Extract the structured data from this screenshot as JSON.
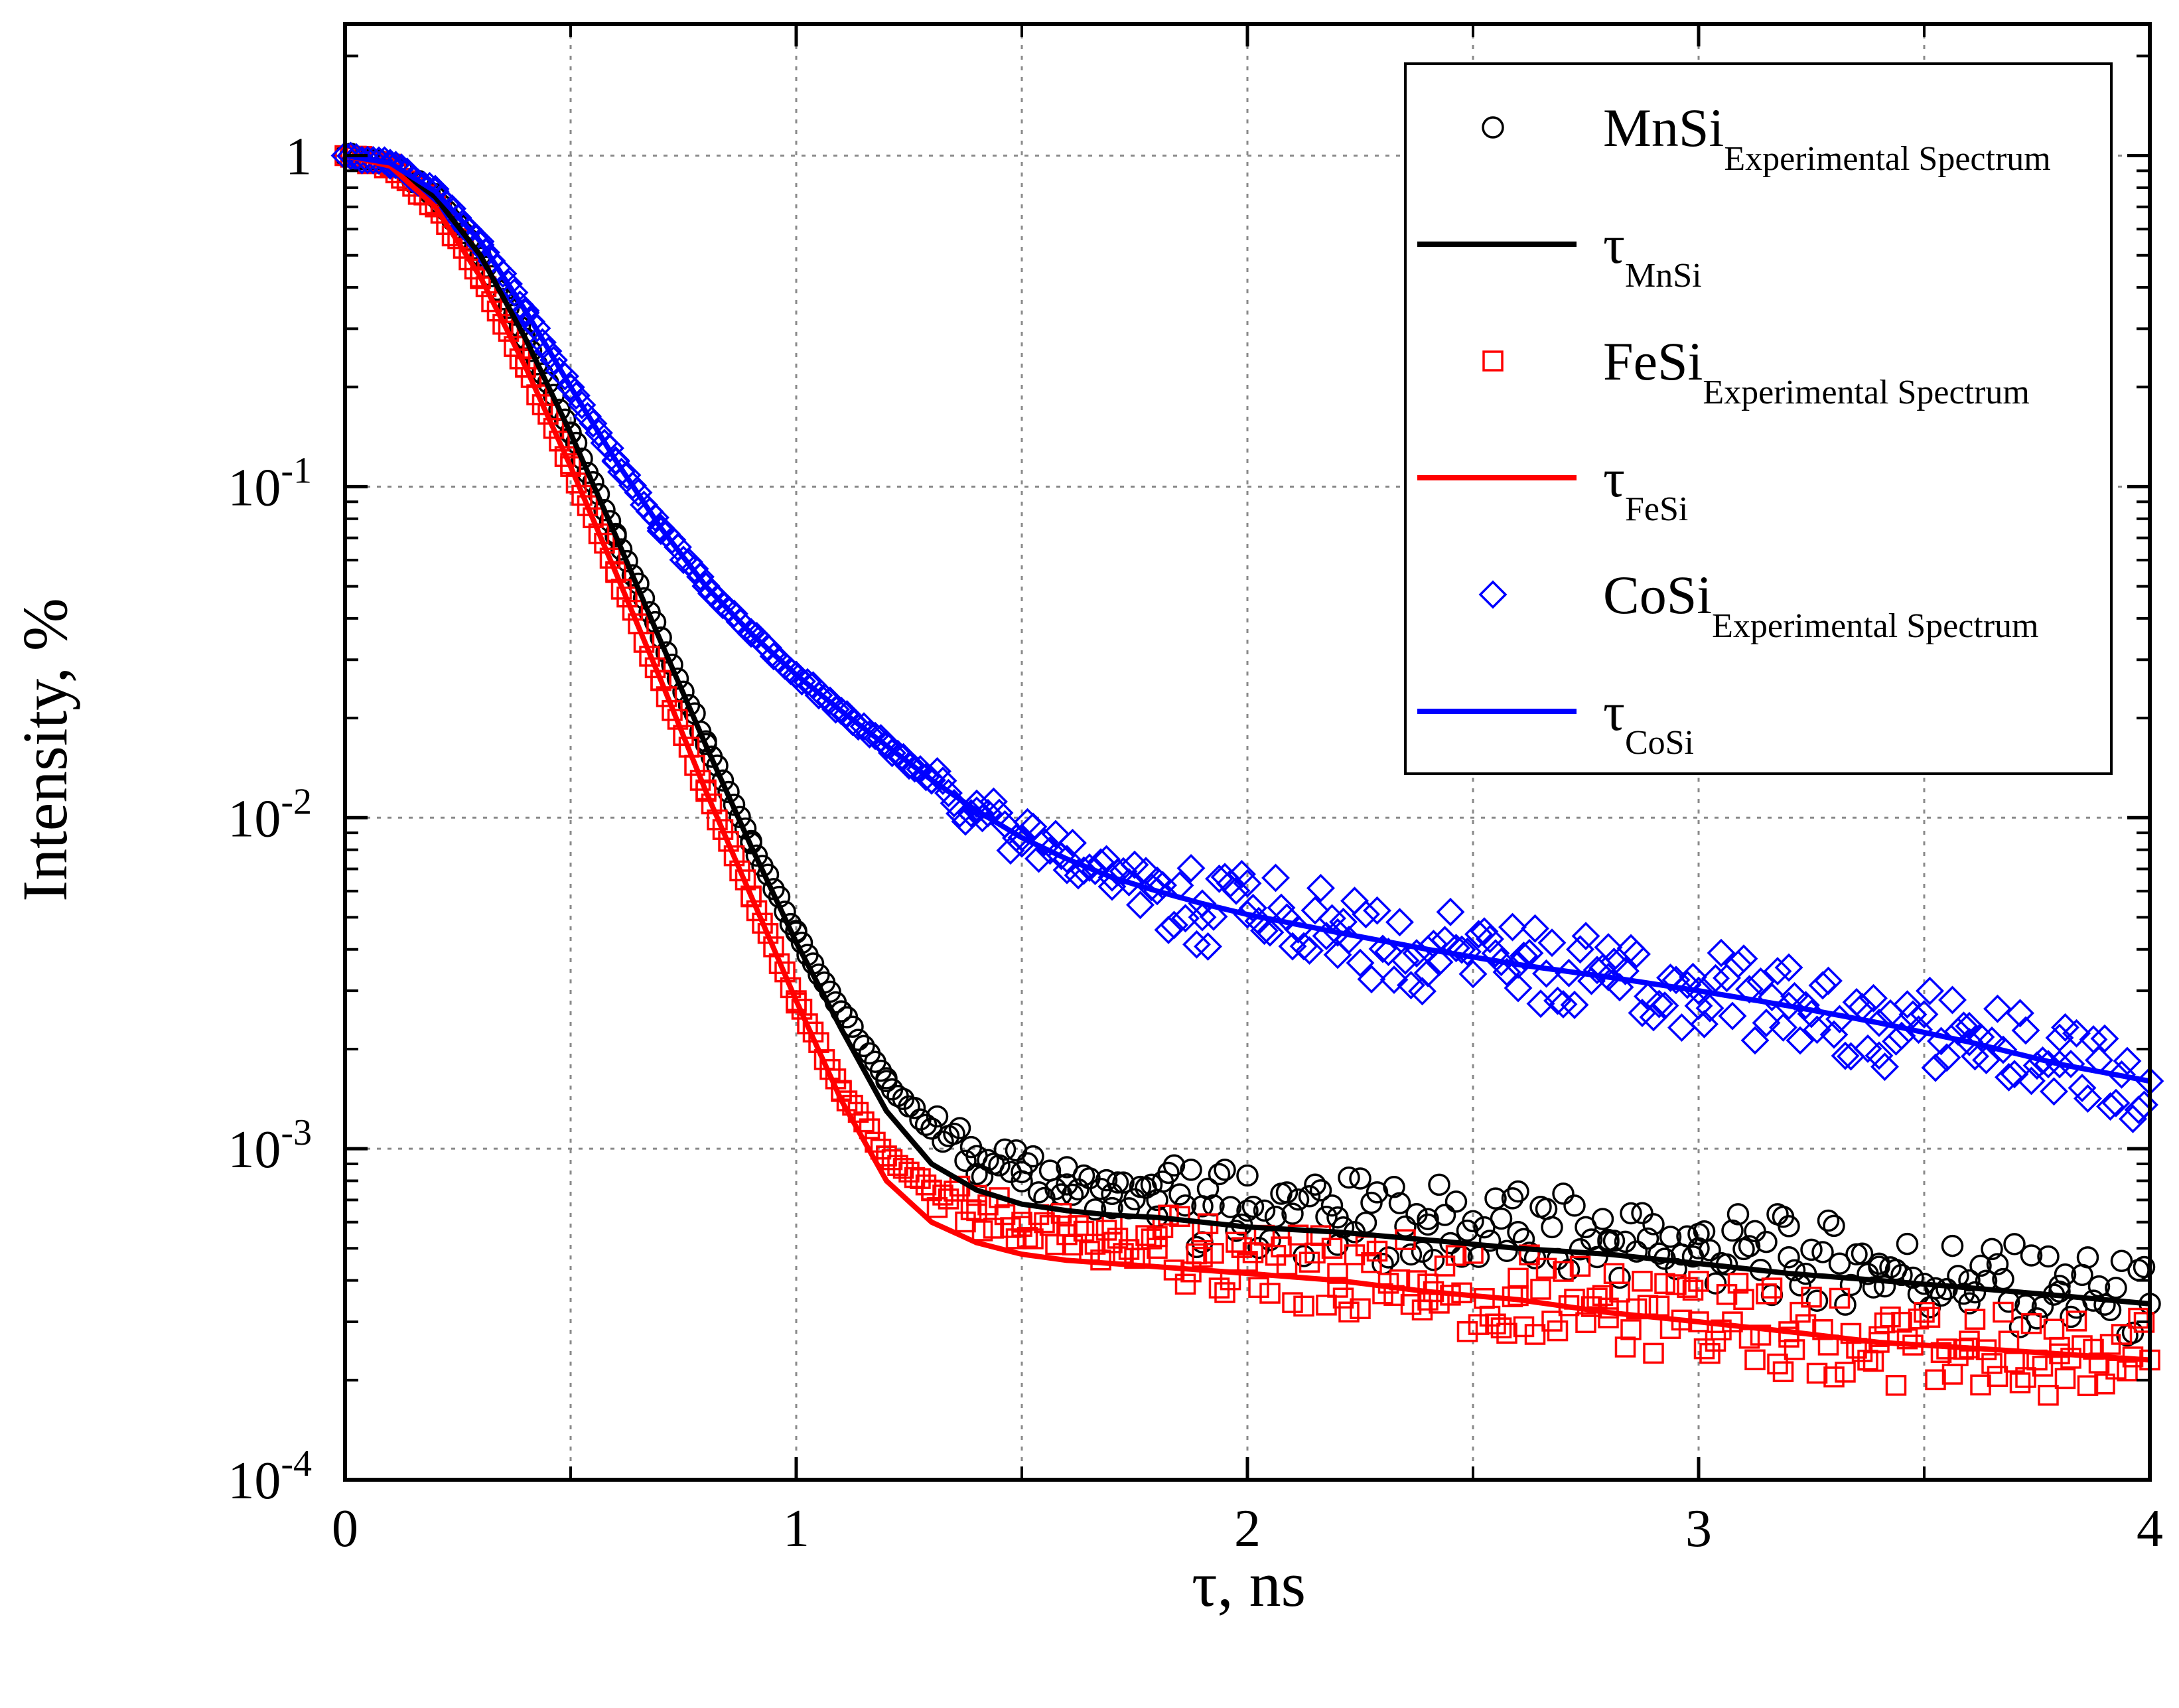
{
  "chart_data": {
    "type": "scatter",
    "title": "",
    "xlabel": "τ, ns",
    "ylabel": "Intensity, %",
    "xscale": "linear",
    "yscale": "log",
    "xlim": [
      0,
      4
    ],
    "ylim": [
      0.0001,
      2.5
    ],
    "grid": true,
    "legend_position": "top-right",
    "x_ticks": [
      {
        "value": 0,
        "label": "0"
      },
      {
        "value": 1,
        "label": "1"
      },
      {
        "value": 2,
        "label": "2"
      },
      {
        "value": 3,
        "label": "3"
      },
      {
        "value": 4,
        "label": "4"
      }
    ],
    "y_ticks": [
      {
        "value": 1,
        "base": "1",
        "exp": ""
      },
      {
        "value": 0.1,
        "base": "10",
        "exp": "-1"
      },
      {
        "value": 0.01,
        "base": "10",
        "exp": "-2"
      },
      {
        "value": 0.001,
        "base": "10",
        "exp": "-3"
      },
      {
        "value": 0.0001,
        "base": "10",
        "exp": "-4"
      }
    ],
    "series": [
      {
        "name": "MnSi",
        "subscript": "Experimental Spectrum",
        "kind": "markers",
        "marker": "circle",
        "color": "#000000",
        "x": [
          0.0,
          0.1,
          0.2,
          0.3,
          0.4,
          0.5,
          0.6,
          0.7,
          0.8,
          0.9,
          1.0,
          1.1,
          1.2,
          1.3,
          1.4,
          1.5,
          1.6,
          1.7,
          1.8,
          1.9,
          2.0,
          2.2,
          2.4,
          2.6,
          2.8,
          3.0,
          3.2,
          3.4,
          3.6,
          3.8,
          4.0
        ],
        "y": [
          1.0,
          0.95,
          0.75,
          0.5,
          0.28,
          0.145,
          0.072,
          0.035,
          0.017,
          0.0085,
          0.0045,
          0.0026,
          0.0016,
          0.00115,
          0.00095,
          0.00085,
          0.00078,
          0.00073,
          0.0007,
          0.00067,
          0.00065,
          0.00062,
          0.00059,
          0.00056,
          0.00053,
          0.0005,
          0.00047,
          0.00044,
          0.0004,
          0.00037,
          0.00034
        ]
      },
      {
        "name": "τ",
        "subscript": "MnSi",
        "kind": "line",
        "color": "#000000",
        "x": [
          0.0,
          0.1,
          0.2,
          0.3,
          0.4,
          0.5,
          0.6,
          0.7,
          0.8,
          0.9,
          1.0,
          1.1,
          1.2,
          1.3,
          1.4,
          1.5,
          1.6,
          1.7,
          1.8,
          1.9,
          2.0,
          2.2,
          2.4,
          2.6,
          2.8,
          3.0,
          3.2,
          3.4,
          3.6,
          3.8,
          4.0
        ],
        "y": [
          1.0,
          0.95,
          0.75,
          0.5,
          0.28,
          0.145,
          0.071,
          0.034,
          0.0165,
          0.0082,
          0.0042,
          0.0023,
          0.0013,
          0.0009,
          0.00075,
          0.00068,
          0.00065,
          0.00063,
          0.00062,
          0.0006,
          0.00058,
          0.00056,
          0.00053,
          0.0005,
          0.00048,
          0.00045,
          0.00042,
          0.0004,
          0.00038,
          0.00036,
          0.00034
        ]
      },
      {
        "name": "FeSi",
        "subscript": "Experimental Spectrum",
        "kind": "markers",
        "marker": "square",
        "color": "#ff0000",
        "x": [
          0.0,
          0.1,
          0.2,
          0.3,
          0.4,
          0.5,
          0.6,
          0.7,
          0.8,
          0.9,
          1.0,
          1.1,
          1.2,
          1.3,
          1.4,
          1.5,
          1.6,
          1.7,
          1.8,
          1.9,
          2.0,
          2.2,
          2.4,
          2.6,
          2.8,
          3.0,
          3.2,
          3.4,
          3.6,
          3.8,
          4.0
        ],
        "y": [
          1.0,
          0.93,
          0.7,
          0.43,
          0.23,
          0.115,
          0.055,
          0.026,
          0.012,
          0.0058,
          0.0028,
          0.0015,
          0.00095,
          0.00075,
          0.00065,
          0.0006,
          0.00055,
          0.00052,
          0.0005,
          0.00047,
          0.00045,
          0.00042,
          0.00039,
          0.00036,
          0.00033,
          0.0003,
          0.00028,
          0.00026,
          0.00025,
          0.00024,
          0.00023
        ]
      },
      {
        "name": "τ",
        "subscript": "FeSi",
        "kind": "line",
        "color": "#ff0000",
        "x": [
          0.0,
          0.1,
          0.2,
          0.3,
          0.4,
          0.5,
          0.6,
          0.7,
          0.8,
          0.9,
          1.0,
          1.1,
          1.2,
          1.3,
          1.4,
          1.5,
          1.6,
          1.7,
          1.8,
          1.9,
          2.0,
          2.2,
          2.4,
          2.6,
          2.8,
          3.0,
          3.2,
          3.4,
          3.6,
          3.8,
          4.0
        ],
        "y": [
          1.0,
          0.93,
          0.7,
          0.43,
          0.23,
          0.115,
          0.055,
          0.026,
          0.012,
          0.0058,
          0.0028,
          0.0014,
          0.0008,
          0.0006,
          0.00052,
          0.00048,
          0.00046,
          0.00045,
          0.00044,
          0.00043,
          0.00042,
          0.0004,
          0.00037,
          0.00035,
          0.00032,
          0.0003,
          0.00028,
          0.00026,
          0.00025,
          0.00024,
          0.00023
        ]
      },
      {
        "name": "CoSi",
        "subscript": "Experimental Spectrum",
        "kind": "markers",
        "marker": "diamond",
        "color": "#0000ff",
        "x": [
          0.0,
          0.1,
          0.2,
          0.3,
          0.4,
          0.5,
          0.6,
          0.7,
          0.8,
          0.9,
          1.0,
          1.1,
          1.2,
          1.3,
          1.4,
          1.5,
          1.6,
          1.7,
          1.8,
          1.9,
          2.0,
          2.2,
          2.4,
          2.6,
          2.8,
          3.0,
          3.2,
          3.4,
          3.6,
          3.8,
          4.0
        ],
        "y": [
          1.0,
          0.95,
          0.78,
          0.55,
          0.34,
          0.2,
          0.12,
          0.075,
          0.05,
          0.036,
          0.027,
          0.021,
          0.0165,
          0.013,
          0.0105,
          0.0087,
          0.0075,
          0.0066,
          0.006,
          0.0055,
          0.0051,
          0.0045,
          0.004,
          0.0036,
          0.0033,
          0.003,
          0.0027,
          0.0024,
          0.0021,
          0.0018,
          0.0016
        ]
      },
      {
        "name": "τ",
        "subscript": "CoSi",
        "kind": "line",
        "color": "#0000ff",
        "x": [
          0.0,
          0.1,
          0.2,
          0.3,
          0.4,
          0.5,
          0.6,
          0.7,
          0.8,
          0.9,
          1.0,
          1.1,
          1.2,
          1.3,
          1.4,
          1.5,
          1.6,
          1.7,
          1.8,
          1.9,
          2.0,
          2.2,
          2.4,
          2.6,
          2.8,
          3.0,
          3.2,
          3.4,
          3.6,
          3.8,
          4.0
        ],
        "y": [
          1.0,
          0.95,
          0.78,
          0.55,
          0.34,
          0.2,
          0.12,
          0.075,
          0.05,
          0.036,
          0.027,
          0.021,
          0.0165,
          0.013,
          0.0105,
          0.0087,
          0.0075,
          0.0066,
          0.006,
          0.0055,
          0.0051,
          0.0045,
          0.004,
          0.0036,
          0.0033,
          0.003,
          0.0027,
          0.0024,
          0.0021,
          0.0018,
          0.0016
        ]
      }
    ]
  }
}
